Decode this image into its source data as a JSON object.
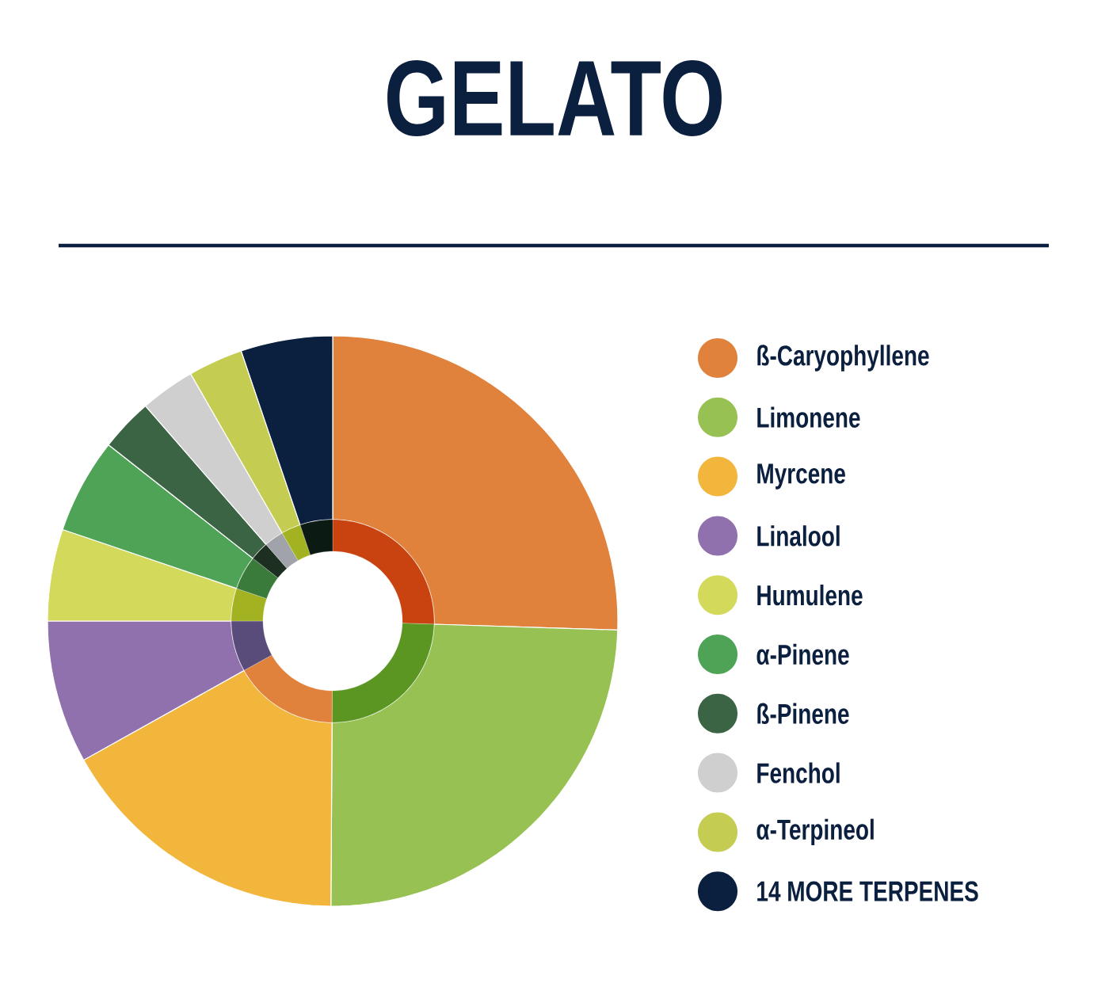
{
  "chart_data": {
    "type": "donut",
    "title": "GELATO",
    "categories": [
      "ß-Caryophyllene",
      "Limonene",
      "Myrcene",
      "Linalool",
      "Humulene",
      "α-Pinene",
      "ß-Pinene",
      "Fenchol",
      "α-Terpineol",
      "14 MORE TERPENES"
    ],
    "series": [
      {
        "values": [
          25.5,
          24.6,
          16.8,
          8.1,
          5.2,
          5.4,
          3.0,
          3.1,
          3.1,
          5.2
        ],
        "colors": [
          "#e0823c",
          "#97c153",
          "#f2b63c",
          "#9070ad",
          "#d3d95a",
          "#4ea356",
          "#3b6444",
          "#cfcfcf",
          "#c4cc52",
          "#0b1f3f"
        ]
      },
      {
        "values": [
          25.5,
          24.6,
          16.8,
          8.1,
          5.2,
          5.4,
          3.0,
          3.1,
          3.1,
          5.2
        ],
        "colors": [
          "#c8430f",
          "#5a9621",
          "#e0823c",
          "#5a4c7a",
          "#a3b220",
          "#3a7a3a",
          "#1c2f20",
          "#a0a4aa",
          "#a3b220",
          "#0c1a14"
        ]
      }
    ],
    "legend": "right"
  }
}
